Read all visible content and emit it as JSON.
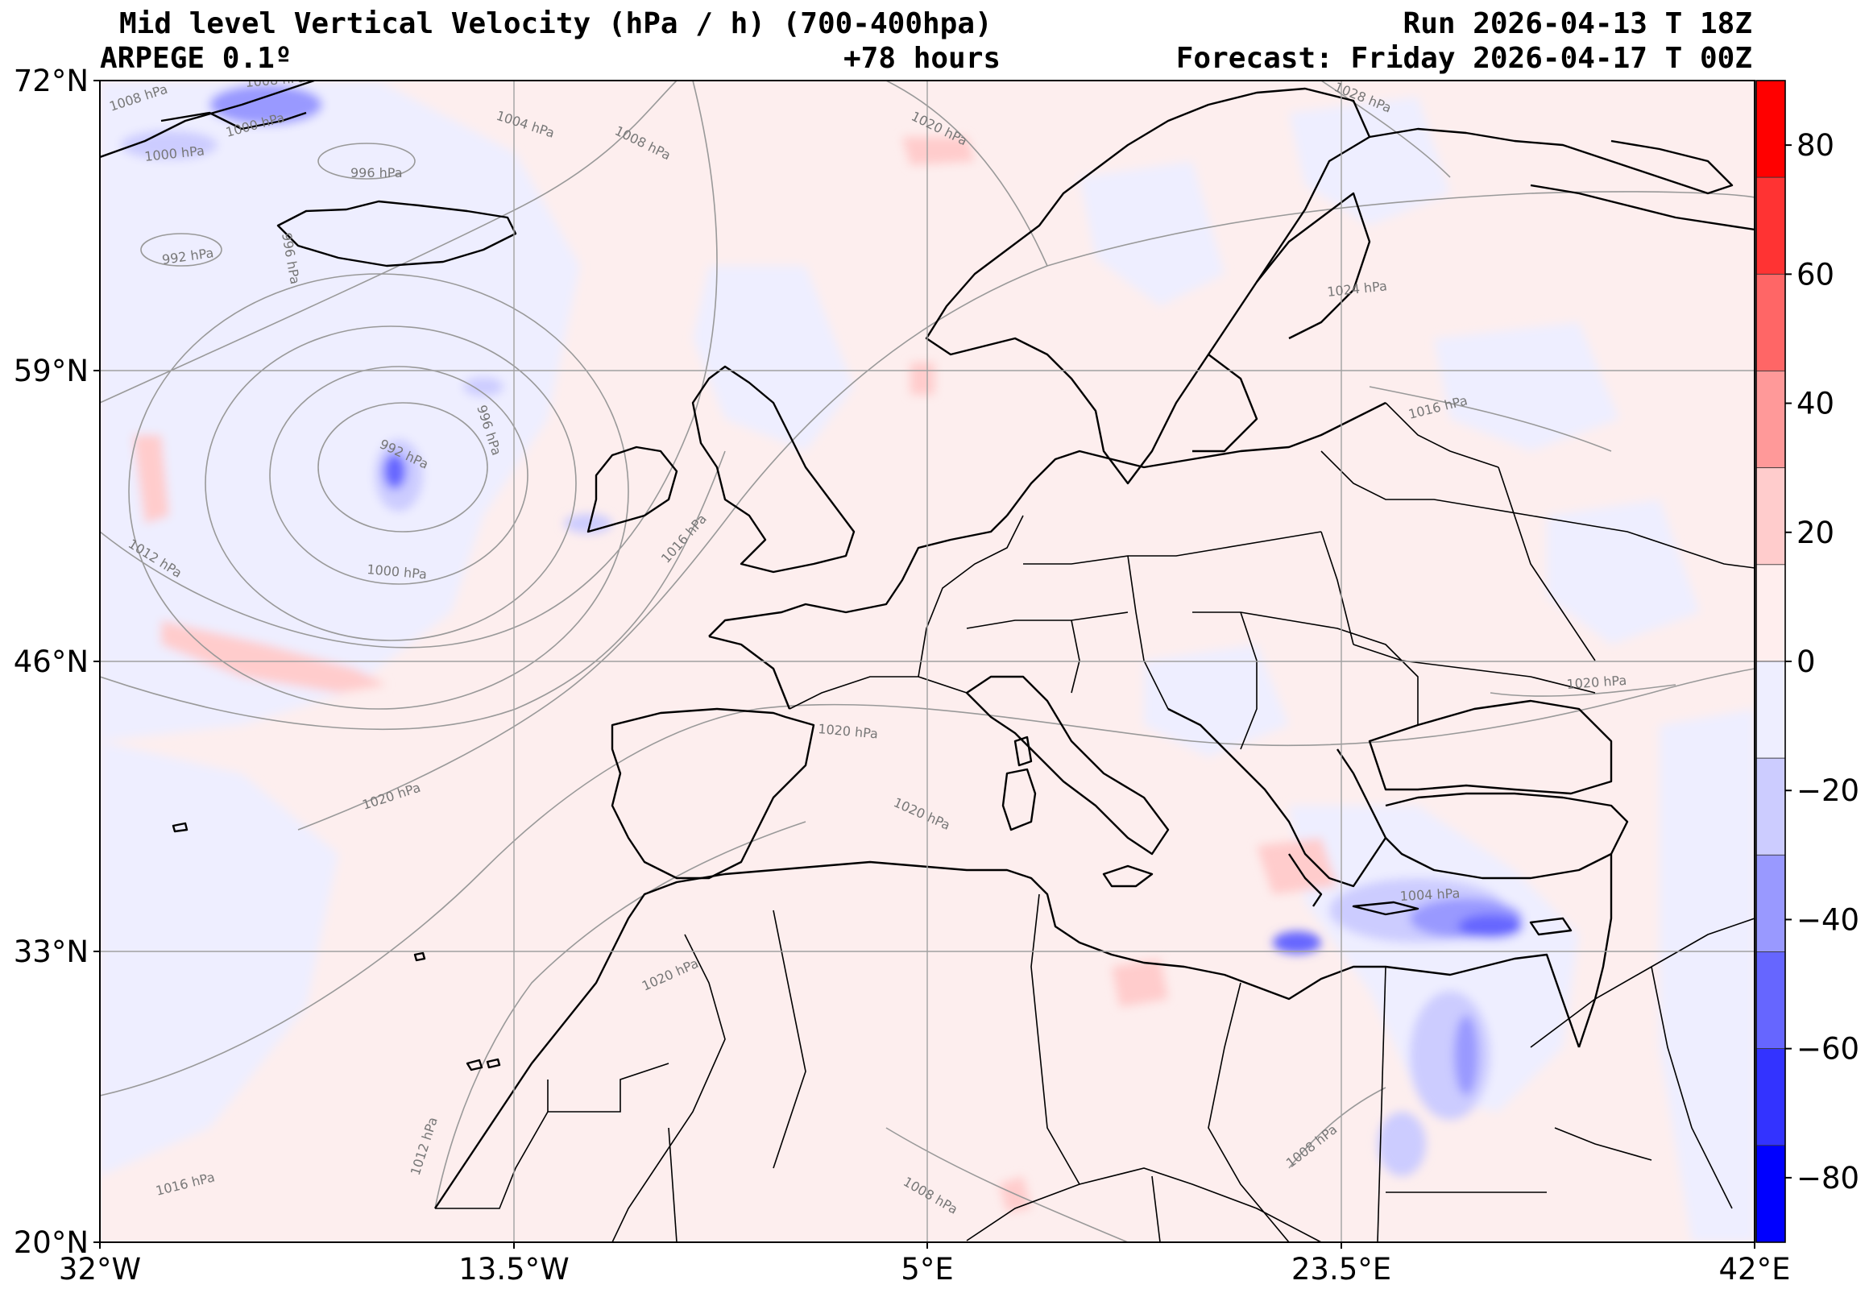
{
  "header": {
    "title": "Mid level Vertical Velocity (hPa / h)  (700-400hpa)",
    "model": "ARPEGE 0.1º",
    "lead": "+78 hours",
    "run": "Run 2026-04-13 T 18Z",
    "valid": "Forecast: Friday 2026-04-17 T 00Z"
  },
  "map": {
    "lon_ticks": [
      "32°W",
      "13.5°W",
      "5°E",
      "23.5°E",
      "42°E"
    ],
    "lat_ticks": [
      "72°N",
      "59°N",
      "46°N",
      "33°N",
      "20°N"
    ],
    "isobar_labels": [
      "1008 hPa",
      "1008 hPa",
      "1000 hPa",
      "1000 hPa",
      "996 hPa",
      "1004 hPa",
      "1008 hPa",
      "1020 hPa",
      "1028 hPa",
      "992 hPa",
      "996 hPa",
      "1024 hPa",
      "992 hPa",
      "996 hPa",
      "1016 hPa",
      "1012 hPa",
      "1016 hPa",
      "1000 hPa",
      "1020 hPa",
      "1020 hPa",
      "1020 hPa",
      "1020 hPa",
      "1004 hPa",
      "1020 hPa",
      "1012 hPa",
      "1016 hPa",
      "1008 hPa",
      "1008 hPa"
    ]
  },
  "colorbar": {
    "ticks": [
      "80",
      "60",
      "40",
      "20",
      "0",
      "−20",
      "−40",
      "−60",
      "−80"
    ],
    "colors": [
      "#ff0000",
      "#ff3333",
      "#ff6666",
      "#ff9999",
      "#ffcccc",
      "#ffeeee",
      "#eeeeff",
      "#ccccff",
      "#9999ff",
      "#6666ff",
      "#3333ff",
      "#0000ff"
    ]
  }
}
